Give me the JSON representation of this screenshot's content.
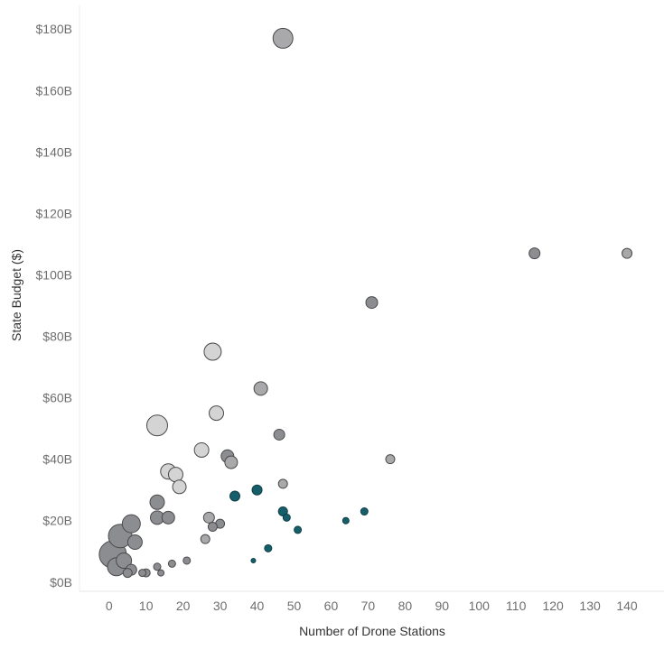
{
  "chart_data": {
    "type": "scatter",
    "xlabel": "Number of Drone Stations",
    "ylabel": "State Budget ($)",
    "xlim": [
      -8,
      150
    ],
    "ylim": [
      -3,
      188
    ],
    "x_ticks": [
      {
        "value": 0,
        "label": "0"
      },
      {
        "value": 10,
        "label": "10"
      },
      {
        "value": 20,
        "label": "20"
      },
      {
        "value": 30,
        "label": "30"
      },
      {
        "value": 40,
        "label": "40"
      },
      {
        "value": 50,
        "label": "50"
      },
      {
        "value": 60,
        "label": "60"
      },
      {
        "value": 70,
        "label": "70"
      },
      {
        "value": 80,
        "label": "80"
      },
      {
        "value": 90,
        "label": "90"
      },
      {
        "value": 100,
        "label": "100"
      },
      {
        "value": 110,
        "label": "110"
      },
      {
        "value": 120,
        "label": "120"
      },
      {
        "value": 130,
        "label": "130"
      },
      {
        "value": 140,
        "label": "140"
      }
    ],
    "y_ticks": [
      {
        "value": 0,
        "label": "$0B"
      },
      {
        "value": 20,
        "label": "$20B"
      },
      {
        "value": 40,
        "label": "$40B"
      },
      {
        "value": 60,
        "label": "$60B"
      },
      {
        "value": 80,
        "label": "$80B"
      },
      {
        "value": 100,
        "label": "$100B"
      },
      {
        "value": 120,
        "label": "$120B"
      },
      {
        "value": 140,
        "label": "$140B"
      },
      {
        "value": 160,
        "label": "$160B"
      },
      {
        "value": 180,
        "label": "$180B"
      }
    ],
    "grid": false,
    "colors": {
      "light": "#d4d4d4",
      "medium": "#a9a9ab",
      "dark": "#8c8d91",
      "teal": "#165e69",
      "stroke": "#4a4a4a",
      "stroke_teal": "#0d3f47"
    },
    "points": [
      {
        "x": 47,
        "y": 177,
        "size": 11,
        "color": "medium"
      },
      {
        "x": 115,
        "y": 107,
        "size": 6,
        "color": "dark"
      },
      {
        "x": 140,
        "y": 107,
        "size": 5.5,
        "color": "medium"
      },
      {
        "x": 71,
        "y": 91,
        "size": 6.5,
        "color": "dark"
      },
      {
        "x": 28,
        "y": 75,
        "size": 9.5,
        "color": "light"
      },
      {
        "x": 41,
        "y": 63,
        "size": 7.5,
        "color": "medium"
      },
      {
        "x": 29,
        "y": 55,
        "size": 8,
        "color": "light"
      },
      {
        "x": 13,
        "y": 51,
        "size": 11.5,
        "color": "light"
      },
      {
        "x": 46,
        "y": 48,
        "size": 6,
        "color": "dark"
      },
      {
        "x": 25,
        "y": 43,
        "size": 8,
        "color": "light"
      },
      {
        "x": 32,
        "y": 41,
        "size": 7,
        "color": "dark"
      },
      {
        "x": 33,
        "y": 39,
        "size": 7,
        "color": "medium"
      },
      {
        "x": 76,
        "y": 40,
        "size": 5,
        "color": "medium"
      },
      {
        "x": 16,
        "y": 36,
        "size": 8.5,
        "color": "light"
      },
      {
        "x": 18,
        "y": 35,
        "size": 8,
        "color": "light"
      },
      {
        "x": 19,
        "y": 31,
        "size": 7.5,
        "color": "light"
      },
      {
        "x": 47,
        "y": 32,
        "size": 5,
        "color": "medium"
      },
      {
        "x": 40,
        "y": 30,
        "size": 5.5,
        "color": "teal"
      },
      {
        "x": 34,
        "y": 28,
        "size": 5.5,
        "color": "teal"
      },
      {
        "x": 13,
        "y": 26,
        "size": 8,
        "color": "dark"
      },
      {
        "x": 47,
        "y": 23,
        "size": 5,
        "color": "teal"
      },
      {
        "x": 48,
        "y": 21,
        "size": 4,
        "color": "teal"
      },
      {
        "x": 69,
        "y": 23,
        "size": 4,
        "color": "teal"
      },
      {
        "x": 64,
        "y": 20,
        "size": 3.5,
        "color": "teal"
      },
      {
        "x": 13,
        "y": 21,
        "size": 7.5,
        "color": "dark"
      },
      {
        "x": 16,
        "y": 21,
        "size": 7,
        "color": "dark"
      },
      {
        "x": 27,
        "y": 21,
        "size": 6,
        "color": "medium"
      },
      {
        "x": 6,
        "y": 19,
        "size": 10,
        "color": "dark"
      },
      {
        "x": 30,
        "y": 19,
        "size": 5,
        "color": "dark"
      },
      {
        "x": 28,
        "y": 18,
        "size": 5,
        "color": "dark"
      },
      {
        "x": 51,
        "y": 17,
        "size": 4,
        "color": "teal"
      },
      {
        "x": 3,
        "y": 15,
        "size": 13,
        "color": "dark"
      },
      {
        "x": 26,
        "y": 14,
        "size": 5,
        "color": "medium"
      },
      {
        "x": 7,
        "y": 13,
        "size": 8,
        "color": "dark"
      },
      {
        "x": 43,
        "y": 11,
        "size": 4,
        "color": "teal"
      },
      {
        "x": 1,
        "y": 9,
        "size": 15,
        "color": "dark"
      },
      {
        "x": 4,
        "y": 7,
        "size": 8.5,
        "color": "dark"
      },
      {
        "x": 2,
        "y": 5,
        "size": 10,
        "color": "dark"
      },
      {
        "x": 39,
        "y": 7,
        "size": 2.5,
        "color": "teal"
      },
      {
        "x": 21,
        "y": 7,
        "size": 4,
        "color": "dark"
      },
      {
        "x": 17,
        "y": 6,
        "size": 4,
        "color": "dark"
      },
      {
        "x": 13,
        "y": 5,
        "size": 4,
        "color": "dark"
      },
      {
        "x": 6,
        "y": 4,
        "size": 6,
        "color": "dark"
      },
      {
        "x": 10,
        "y": 3,
        "size": 4.5,
        "color": "dark"
      },
      {
        "x": 5,
        "y": 3,
        "size": 5,
        "color": "dark"
      },
      {
        "x": 9,
        "y": 3,
        "size": 4,
        "color": "dark"
      },
      {
        "x": 14,
        "y": 3,
        "size": 3.5,
        "color": "dark"
      }
    ]
  }
}
